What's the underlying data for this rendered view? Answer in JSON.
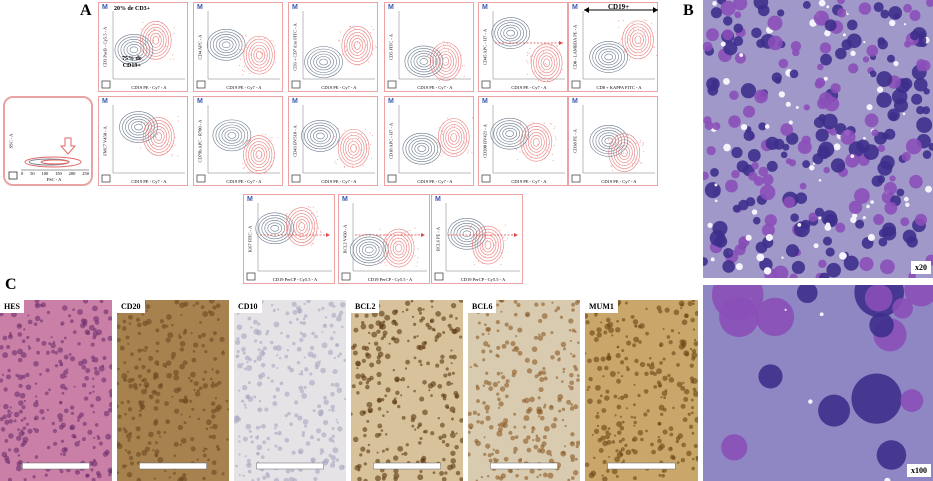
{
  "panel_labels": {
    "a": "A",
    "b": "B",
    "c": "C"
  },
  "flow": {
    "marker": "M",
    "gate_plot": {
      "y_label": "SSC - A",
      "x_label": "FSC - A",
      "xticks": [
        "0",
        "50",
        "100",
        "150",
        "200",
        "250"
      ]
    },
    "annotations": {
      "cd3": "20% de CD3+",
      "cd19_line1": "75% de",
      "cd19_line2": "CD19+",
      "cd19_header": "CD19+"
    },
    "plots": [
      {
        "y_label": "CD3 PacB - Cy5.5 - A",
        "x_label": "CD19 PE - Cy7 - A"
      },
      {
        "y_label": "CD4 APC - A",
        "x_label": "CD19 PE - Cy7 - A"
      },
      {
        "y_label": "CD3 + CD7 dim FITC - A",
        "x_label": "CD19 PE - Cy7 - A"
      },
      {
        "y_label": "CD5 FITC - A",
        "x_label": "CD19 PE - Cy7 - A"
      },
      {
        "y_label": "CD45 APC - H7 - A",
        "x_label": "CD19 PE - Cy7 - A"
      },
      {
        "y_label": "CD8 - LAMBDA PE - A",
        "x_label": "CD8 + KAPPA FITC - A"
      },
      {
        "y_label": "FMC7 V450 - A",
        "x_label": "CD19 PE - Cy7 - A"
      },
      {
        "y_label": "CD79b APC - R700 - A",
        "x_label": "CD19 PE - Cy7 - A"
      },
      {
        "y_label": "CD43 BV510 - A",
        "x_label": "CD19 PE - Cy7 - A"
      },
      {
        "y_label": "CD10 APC - H7 - A",
        "x_label": "CD19 PE - Cy7 - A"
      },
      {
        "y_label": "CD200 BV421 - A",
        "x_label": "CD19 PE - Cy7 - A"
      },
      {
        "y_label": "CD38 PE - A",
        "x_label": "CD19 PE - Cy7 - A"
      },
      {
        "y_label": "Ki67 FITC - A",
        "x_label": "CD19 PerCP - Cy5.5 - A"
      },
      {
        "y_label": "BCL2 V450 - A",
        "x_label": "CD19 PerCP - Cy5.5 - A"
      },
      {
        "y_label": "BCL6 PE - A",
        "x_label": "CD19 PerCP - Cy5.5 - A"
      }
    ]
  },
  "cytology": {
    "magnifications": [
      "x20",
      "x100"
    ]
  },
  "histology": {
    "stains": [
      "HES",
      "CD20",
      "CD10",
      "BCL2",
      "BCL6",
      "MUM1"
    ]
  }
}
